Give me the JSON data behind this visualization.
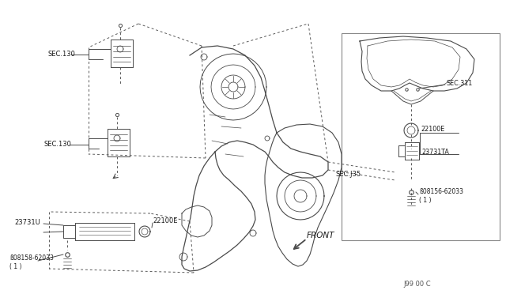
{
  "bg_color": "#ffffff",
  "labels": {
    "sec130_top": "SEC.130",
    "sec130_mid": "SEC.130",
    "sec135": "SEC.J35",
    "sec311": "SEC.311",
    "part_22100E_main": "22100E",
    "part_23731U": "23731U",
    "part_23731TA": "23731TA",
    "bolt_main": "ß08158-62033\n( 1 )",
    "bolt_inset": "ß08156-62033\n( 1 )",
    "front": "FRONT",
    "doc_num": "J99 00 C"
  },
  "colors": {
    "line": "#4a4a4a",
    "dashed": "#5a5a5a",
    "text": "#1a1a1a",
    "bg_inset": "#ffffff",
    "border": "#666666"
  }
}
